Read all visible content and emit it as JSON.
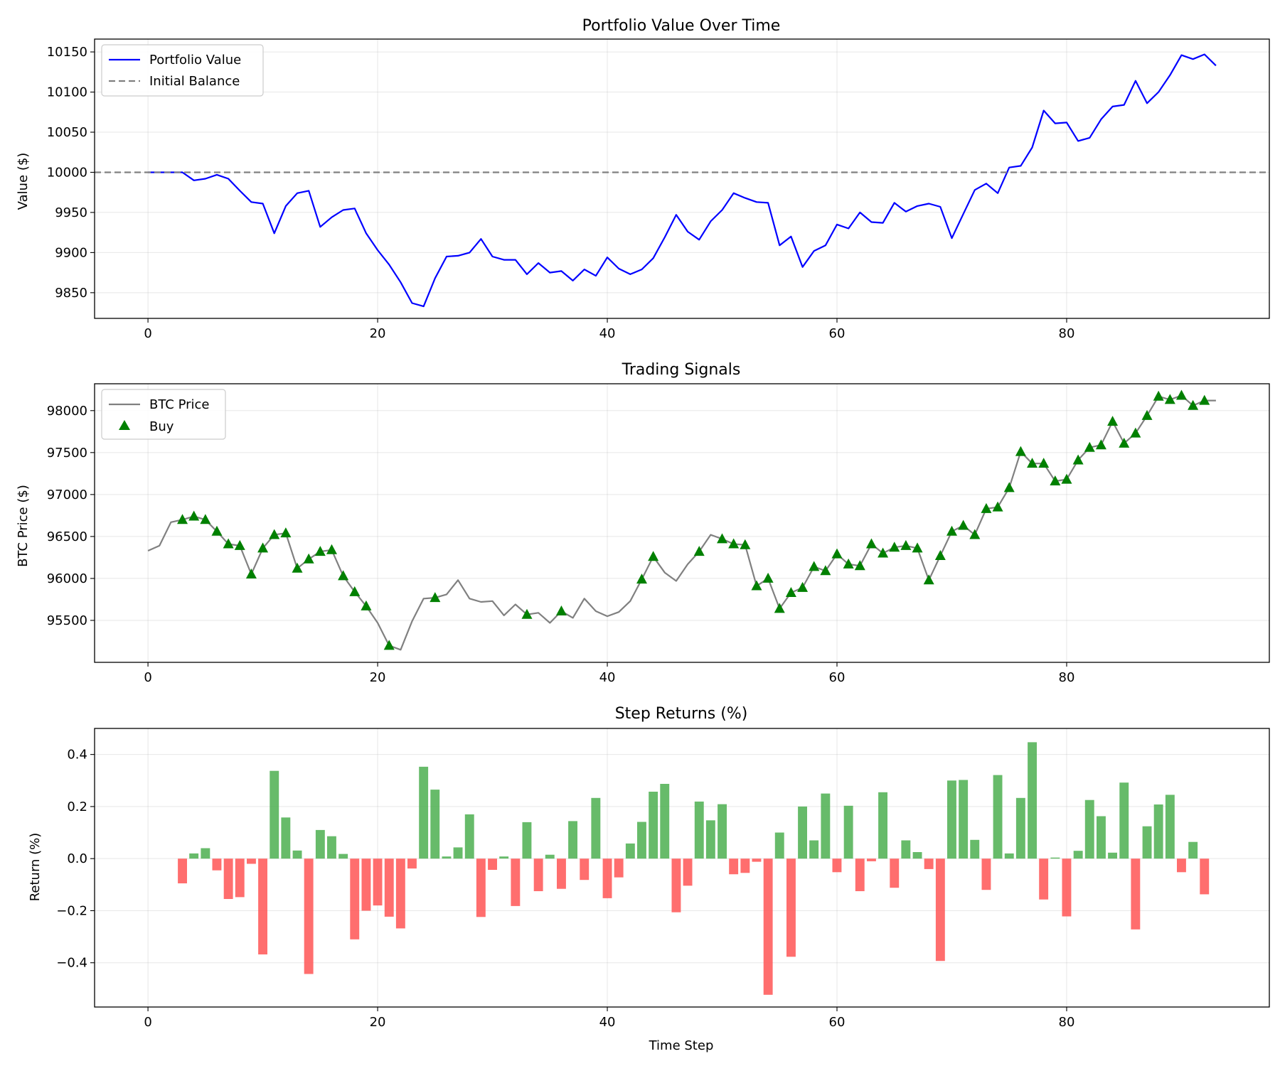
{
  "chart_data": [
    {
      "type": "line",
      "title": "Portfolio Value Over Time",
      "xlabel": "",
      "ylabel": "Value ($)",
      "xlim": [
        -4.65,
        97.65
      ],
      "ylim": [
        9818,
        10166
      ],
      "xticks": [
        0,
        20,
        40,
        60,
        80
      ],
      "yticks": [
        9850,
        9900,
        9950,
        10000,
        10050,
        10100,
        10150
      ],
      "grid": true,
      "legend_position": "top-left",
      "series": [
        {
          "name": "Portfolio Value",
          "color": "#0000ff",
          "style": "solid",
          "x": [
            0,
            1,
            2,
            3,
            4,
            5,
            6,
            7,
            8,
            9,
            10,
            11,
            12,
            13,
            14,
            15,
            16,
            17,
            18,
            19,
            20,
            21,
            22,
            23,
            24,
            25,
            26,
            27,
            28,
            29,
            30,
            31,
            32,
            33,
            34,
            35,
            36,
            37,
            38,
            39,
            40,
            41,
            42,
            43,
            44,
            45,
            46,
            47,
            48,
            49,
            50,
            51,
            52,
            53,
            54,
            55,
            56,
            57,
            58,
            59,
            60,
            61,
            62,
            63,
            64,
            65,
            66,
            67,
            68,
            69,
            70,
            71,
            72,
            73,
            74,
            75,
            76,
            77,
            78,
            79,
            80,
            81,
            82,
            83,
            84,
            85,
            86,
            87,
            88,
            89,
            90,
            91,
            92,
            93
          ],
          "values": [
            10000,
            10000,
            10000,
            10000,
            9990,
            9992,
            9997,
            9992,
            9977,
            9963,
            9961,
            9924,
            9958,
            9974,
            9977,
            9932,
            9944,
            9953,
            9955,
            9924,
            9903,
            9885,
            9863,
            9837,
            9833,
            9868,
            9895,
            9896,
            9900,
            9917,
            9895,
            9891,
            9891,
            9873,
            9887,
            9875,
            9877,
            9865,
            9879,
            9871,
            9894,
            9880,
            9873,
            9879,
            9893,
            9919,
            9947,
            9926,
            9916,
            9939,
            9953,
            9974,
            9968,
            9963,
            9962,
            9909,
            9920,
            9882,
            9902,
            9909,
            9935,
            9930,
            9950,
            9938,
            9937,
            9962,
            9951,
            9958,
            9961,
            9957,
            9918,
            9948,
            9978,
            9986,
            9974,
            10006,
            10008,
            10031,
            10077,
            10061,
            10062,
            10039,
            10043,
            10066,
            10082,
            10084,
            10114,
            10086,
            10100,
            10121,
            10146,
            10141,
            10147,
            10133
          ]
        },
        {
          "name": "Initial Balance",
          "color": "#808080",
          "style": "dashed",
          "y": 10000
        }
      ]
    },
    {
      "type": "line",
      "title": "Trading Signals",
      "xlabel": "",
      "ylabel": "BTC Price ($)",
      "xlim": [
        -4.65,
        97.65
      ],
      "ylim": [
        95000,
        98320
      ],
      "xticks": [
        0,
        20,
        40,
        60,
        80
      ],
      "yticks": [
        95500,
        96000,
        96500,
        97000,
        97500,
        98000
      ],
      "grid": true,
      "legend_position": "top-left",
      "series": [
        {
          "name": "BTC Price",
          "color": "#808080",
          "style": "solid",
          "x": [
            0,
            1,
            2,
            3,
            4,
            5,
            6,
            7,
            8,
            9,
            10,
            11,
            12,
            13,
            14,
            15,
            16,
            17,
            18,
            19,
            20,
            21,
            22,
            23,
            24,
            25,
            26,
            27,
            28,
            29,
            30,
            31,
            32,
            33,
            34,
            35,
            36,
            37,
            38,
            39,
            40,
            41,
            42,
            43,
            44,
            45,
            46,
            47,
            48,
            49,
            50,
            51,
            52,
            53,
            54,
            55,
            56,
            57,
            58,
            59,
            60,
            61,
            62,
            63,
            64,
            65,
            66,
            67,
            68,
            69,
            70,
            71,
            72,
            73,
            74,
            75,
            76,
            77,
            78,
            79,
            80,
            81,
            82,
            83,
            84,
            85,
            86,
            87,
            88,
            89,
            90,
            91,
            92,
            93
          ],
          "values": [
            96330,
            96390,
            96670,
            96700,
            96740,
            96700,
            96560,
            96410,
            96390,
            96050,
            96360,
            96520,
            96540,
            96120,
            96230,
            96320,
            96340,
            96030,
            95840,
            95670,
            95470,
            95200,
            95150,
            95490,
            95760,
            95770,
            95810,
            95980,
            95760,
            95720,
            95730,
            95560,
            95690,
            95570,
            95590,
            95470,
            95610,
            95530,
            95760,
            95610,
            95550,
            95600,
            95730,
            95990,
            96260,
            96070,
            95970,
            96170,
            96320,
            96520,
            96470,
            96410,
            96400,
            95910,
            96000,
            95640,
            95830,
            95890,
            96140,
            96090,
            96290,
            96170,
            96150,
            96410,
            96300,
            96370,
            96390,
            96360,
            95980,
            96270,
            96560,
            96630,
            96520,
            96830,
            96850,
            97080,
            97510,
            97370,
            97370,
            97160,
            97180,
            97410,
            97560,
            97590,
            97870,
            97610,
            97730,
            97940,
            98170,
            98130,
            98180,
            98060,
            98120,
            98120
          ]
        },
        {
          "name": "Buy",
          "color": "#008000",
          "marker": "triangle",
          "x": [
            3,
            4,
            5,
            6,
            7,
            8,
            9,
            10,
            11,
            12,
            13,
            14,
            15,
            16,
            17,
            18,
            19,
            21,
            25,
            33,
            36,
            43,
            44,
            48,
            50,
            51,
            52,
            53,
            54,
            55,
            56,
            57,
            58,
            59,
            60,
            61,
            62,
            63,
            64,
            65,
            66,
            67,
            68,
            69,
            70,
            71,
            72,
            73,
            74,
            75,
            76,
            77,
            78,
            79,
            80,
            81,
            82,
            83,
            84,
            85,
            86,
            87,
            88,
            89,
            90,
            91,
            92
          ],
          "values": [
            96700,
            96740,
            96700,
            96560,
            96410,
            96390,
            96050,
            96360,
            96520,
            96540,
            96120,
            96230,
            96320,
            96340,
            96030,
            95840,
            95670,
            95200,
            95770,
            95570,
            95610,
            95990,
            96260,
            96320,
            96470,
            96410,
            96400,
            95910,
            96000,
            95640,
            95830,
            95890,
            96140,
            96090,
            96290,
            96170,
            96150,
            96410,
            96300,
            96370,
            96390,
            96360,
            95980,
            96270,
            96560,
            96630,
            96520,
            96830,
            96850,
            97080,
            97510,
            97370,
            97370,
            97160,
            97180,
            97410,
            97560,
            97590,
            97870,
            97610,
            97730,
            97940,
            98170,
            98130,
            98180,
            98060,
            98120
          ]
        }
      ]
    },
    {
      "type": "bar",
      "title": "Step Returns (%)",
      "xlabel": "Time Step",
      "ylabel": "Return (%)",
      "xlim": [
        -4.65,
        97.65
      ],
      "ylim": [
        -0.57,
        0.5
      ],
      "xticks": [
        0,
        20,
        40,
        60,
        80
      ],
      "yticks": [
        -0.4,
        -0.2,
        0.0,
        0.2,
        0.4
      ],
      "ytick_labels": [
        "−0.4",
        "−0.2",
        "0.0",
        "0.2",
        "0.4"
      ],
      "grid": true,
      "positive_color": "#4caf50",
      "negative_color": "#ff5555",
      "x": [
        3,
        4,
        5,
        6,
        7,
        8,
        9,
        10,
        11,
        12,
        13,
        14,
        15,
        16,
        17,
        18,
        19,
        20,
        21,
        22,
        23,
        24,
        25,
        26,
        27,
        28,
        29,
        30,
        31,
        32,
        33,
        34,
        35,
        36,
        37,
        38,
        39,
        40,
        41,
        42,
        43,
        44,
        45,
        46,
        47,
        48,
        49,
        50,
        51,
        52,
        53,
        54,
        55,
        56,
        57,
        58,
        59,
        60,
        61,
        62,
        63,
        64,
        65,
        66,
        67,
        68,
        69,
        70,
        71,
        72,
        73,
        74,
        75,
        76,
        77,
        78,
        79,
        80,
        81,
        82,
        83,
        84,
        85,
        86,
        87,
        88,
        89,
        90,
        91,
        92
      ],
      "values": [
        -0.095,
        0.02,
        0.04,
        -0.045,
        -0.155,
        -0.148,
        -0.02,
        -0.368,
        0.337,
        0.158,
        0.031,
        -0.443,
        0.11,
        0.086,
        0.018,
        -0.31,
        -0.2,
        -0.18,
        -0.223,
        -0.268,
        -0.038,
        0.353,
        0.265,
        0.008,
        0.043,
        0.17,
        -0.224,
        -0.043,
        0.008,
        -0.182,
        0.14,
        -0.125,
        0.015,
        -0.116,
        0.144,
        -0.082,
        0.233,
        -0.152,
        -0.072,
        0.058,
        0.141,
        0.257,
        0.287,
        -0.206,
        -0.104,
        0.219,
        0.147,
        0.209,
        -0.06,
        -0.055,
        -0.012,
        -0.523,
        0.1,
        -0.377,
        0.2,
        0.07,
        0.25,
        -0.052,
        0.203,
        -0.125,
        -0.01,
        0.255,
        -0.112,
        0.07,
        0.025,
        -0.04,
        -0.393,
        0.3,
        0.302,
        0.072,
        -0.12,
        0.321,
        0.02,
        0.233,
        0.447,
        -0.157,
        0.004,
        -0.222,
        0.03,
        0.225,
        0.163,
        0.023,
        0.292,
        -0.272,
        0.124,
        0.208,
        0.245,
        -0.052,
        0.064,
        -0.137
      ]
    }
  ]
}
